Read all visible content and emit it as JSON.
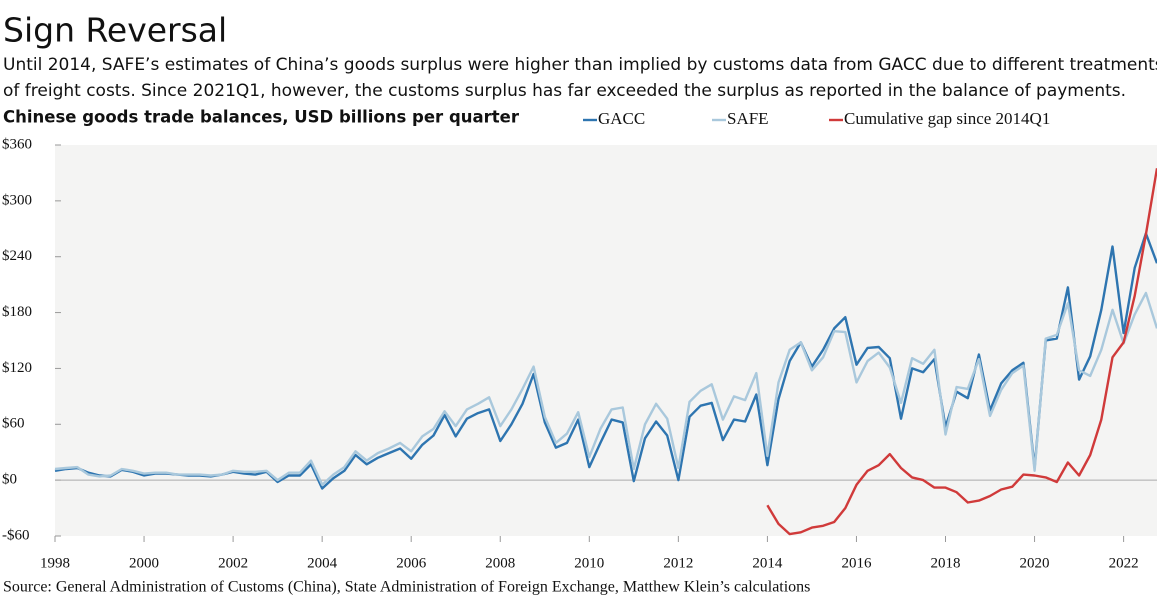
{
  "chart_data": {
    "type": "line",
    "title": "Sign Reversal",
    "subtitle": [
      "Until 2014, SAFE’s estimates of China’s goods surplus were higher than implied by customs data from GACC due to different treatments",
      "of freight costs. Since 2021Q1, however, the customs surplus has far exceeded the surplus as reported in the balance of payments."
    ],
    "y_label": "Chinese goods trade balances, USD billions per quarter",
    "source": "Source: General Administration of Customs (China), State Administration of Foreign Exchange, Matthew Klein’s calculations",
    "x": [
      1998,
      1998.25,
      1998.5,
      1998.75,
      1999,
      1999.25,
      1999.5,
      1999.75,
      2000,
      2000.25,
      2000.5,
      2000.75,
      2001,
      2001.25,
      2001.5,
      2001.75,
      2002,
      2002.25,
      2002.5,
      2002.75,
      2003,
      2003.25,
      2003.5,
      2003.75,
      2004,
      2004.25,
      2004.5,
      2004.75,
      2005,
      2005.25,
      2005.5,
      2005.75,
      2006,
      2006.25,
      2006.5,
      2006.75,
      2007,
      2007.25,
      2007.5,
      2007.75,
      2008,
      2008.25,
      2008.5,
      2008.75,
      2009,
      2009.25,
      2009.5,
      2009.75,
      2010,
      2010.25,
      2010.5,
      2010.75,
      2011,
      2011.25,
      2011.5,
      2011.75,
      2012,
      2012.25,
      2012.5,
      2012.75,
      2013,
      2013.25,
      2013.5,
      2013.75,
      2014,
      2014.25,
      2014.5,
      2014.75,
      2015,
      2015.25,
      2015.5,
      2015.75,
      2016,
      2016.25,
      2016.5,
      2016.75,
      2017,
      2017.25,
      2017.5,
      2017.75,
      2018,
      2018.25,
      2018.5,
      2018.75,
      2019,
      2019.25,
      2019.5,
      2019.75,
      2020,
      2020.25,
      2020.5,
      2020.75,
      2021,
      2021.25,
      2021.5,
      2021.75,
      2022,
      2022.25,
      2022.5,
      2022.75
    ],
    "series": [
      {
        "name": "GACC",
        "color": "#2e75b0",
        "values": [
          10,
          12,
          13,
          8,
          5,
          4,
          11,
          9,
          5,
          7,
          7,
          6,
          5,
          5,
          4,
          6,
          9,
          7,
          6,
          9,
          -2,
          5,
          5,
          17,
          -9,
          2,
          10,
          27,
          17,
          24,
          29,
          34,
          23,
          38,
          48,
          70,
          47,
          66,
          72,
          76,
          42,
          60,
          82,
          114,
          62,
          35,
          40,
          65,
          14,
          40,
          65,
          62,
          -1,
          45,
          63,
          48,
          0,
          68,
          80,
          83,
          43,
          65,
          63,
          92,
          16,
          87,
          128,
          148,
          122,
          140,
          163,
          175,
          124,
          142,
          143,
          131,
          66,
          120,
          116,
          130,
          57,
          95,
          88,
          135,
          75,
          104,
          118,
          126,
          13,
          150,
          152,
          207,
          108,
          133,
          183,
          251,
          158,
          228,
          265,
          233
        ]
      },
      {
        "name": "SAFE",
        "color": "#a9c8dc",
        "values": [
          12,
          13,
          14,
          6,
          4,
          5,
          12,
          10,
          7,
          8,
          8,
          6,
          6,
          6,
          5,
          6,
          10,
          9,
          9,
          10,
          0,
          8,
          8,
          21,
          -5,
          6,
          14,
          31,
          21,
          29,
          34,
          40,
          31,
          47,
          55,
          74,
          58,
          76,
          82,
          89,
          58,
          76,
          98,
          122,
          68,
          40,
          50,
          73,
          25,
          55,
          76,
          78,
          12,
          60,
          82,
          66,
          13,
          84,
          96,
          103,
          65,
          90,
          86,
          115,
          26,
          105,
          140,
          148,
          118,
          132,
          160,
          159,
          105,
          128,
          137,
          121,
          83,
          131,
          125,
          140,
          49,
          100,
          98,
          130,
          69,
          97,
          115,
          123,
          10,
          152,
          156,
          190,
          118,
          112,
          140,
          183,
          147,
          178,
          201,
          163
        ]
      },
      {
        "name": "Cumulative gap since 2014Q1",
        "color": "#d03a3a",
        "values": [
          null,
          null,
          null,
          null,
          null,
          null,
          null,
          null,
          null,
          null,
          null,
          null,
          null,
          null,
          null,
          null,
          null,
          null,
          null,
          null,
          null,
          null,
          null,
          null,
          null,
          null,
          null,
          null,
          null,
          null,
          null,
          null,
          null,
          null,
          null,
          null,
          null,
          null,
          null,
          null,
          null,
          null,
          null,
          null,
          null,
          null,
          null,
          null,
          null,
          null,
          null,
          null,
          null,
          null,
          null,
          null,
          null,
          null,
          null,
          null,
          null,
          null,
          null,
          null,
          -27,
          -47,
          -58,
          -56,
          -51,
          -49,
          -45,
          -30,
          -5,
          10,
          16,
          28,
          13,
          3,
          0,
          -8,
          -8,
          -13,
          -24,
          -22,
          -17,
          -10,
          -7,
          6,
          5,
          3,
          -2,
          19,
          5,
          27,
          65,
          132,
          148,
          198,
          264,
          335
        ]
      }
    ],
    "xlim": [
      1998,
      2022.75
    ],
    "xticks": [
      1998,
      2000,
      2002,
      2004,
      2006,
      2008,
      2010,
      2012,
      2014,
      2016,
      2018,
      2020,
      2022
    ],
    "ylim": [
      -60,
      360
    ],
    "yticks": [
      {
        "value": -60,
        "label": "-$60"
      },
      {
        "value": 0,
        "label": "$0"
      },
      {
        "value": 60,
        "label": "$60"
      },
      {
        "value": 120,
        "label": "$120"
      },
      {
        "value": 180,
        "label": "$180"
      },
      {
        "value": 240,
        "label": "$240"
      },
      {
        "value": 300,
        "label": "$300"
      },
      {
        "value": 360,
        "label": "$360"
      }
    ]
  }
}
